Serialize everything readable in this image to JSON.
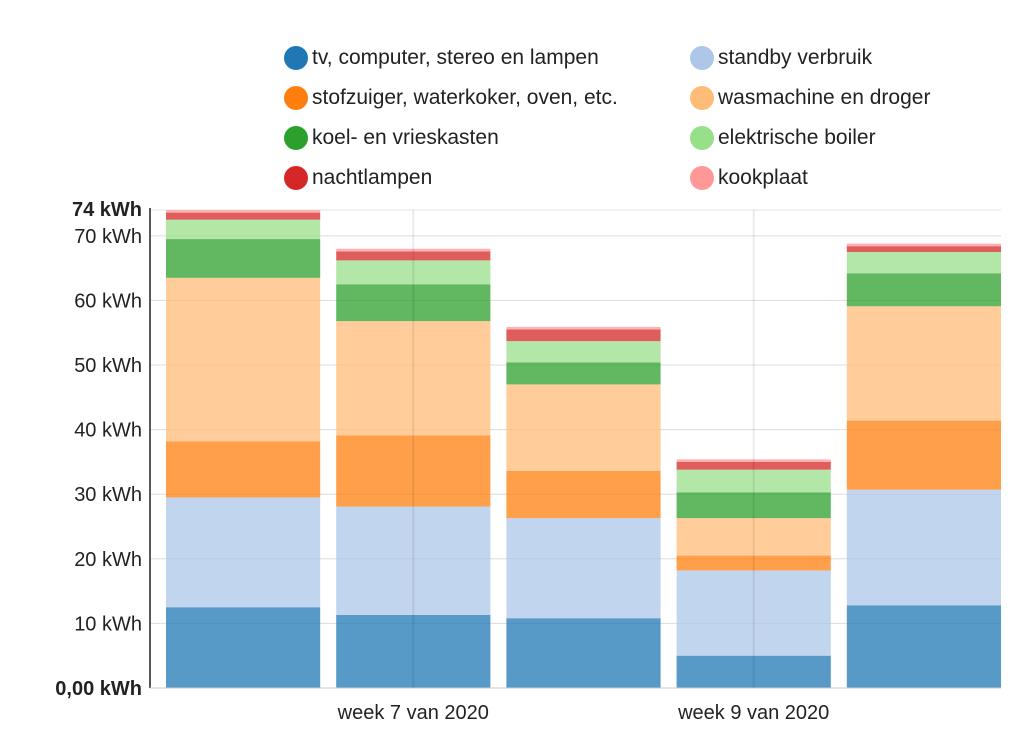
{
  "chart_data": {
    "type": "bar",
    "stacked": true,
    "categories": [
      "",
      "week 7 van 2020",
      "",
      "week 9 van 2020",
      ""
    ],
    "x_tick_labels": [
      "week 7 van 2020",
      "week 9 van 2020"
    ],
    "y_ticks": [
      10,
      20,
      30,
      40,
      50,
      60,
      70
    ],
    "y_tick_labels": [
      "10 kWh",
      "20 kWh",
      "30 kWh",
      "40 kWh",
      "50 kWh",
      "60 kWh",
      "70 kWh"
    ],
    "y_min_label": "0,00 kWh",
    "y_max_label": "74 kWh",
    "ylim": [
      0,
      74
    ],
    "grid": true,
    "legend_position": "top",
    "series": [
      {
        "name": "tv, computer, stereo en lampen",
        "color": "#1f77b4",
        "values": [
          12.5,
          11.3,
          10.8,
          5.0,
          12.8
        ]
      },
      {
        "name": "standby verbruik",
        "color": "#aec7e8",
        "values": [
          17.0,
          16.8,
          15.5,
          13.2,
          17.9
        ]
      },
      {
        "name": "stofzuiger, waterkoker, oven, etc.",
        "color": "#ff7f0e",
        "values": [
          8.7,
          11.0,
          7.3,
          2.3,
          10.7
        ]
      },
      {
        "name": "wasmachine en droger",
        "color": "#ffbb78",
        "values": [
          25.3,
          17.7,
          13.4,
          5.8,
          17.7
        ]
      },
      {
        "name": "koel- en vrieskasten",
        "color": "#2ca02c",
        "values": [
          6.0,
          5.7,
          3.4,
          4.0,
          5.1
        ]
      },
      {
        "name": "elektrische boiler",
        "color": "#98df8a",
        "values": [
          3.0,
          3.7,
          3.3,
          3.5,
          3.3
        ]
      },
      {
        "name": "nachtlampen",
        "color": "#d62728",
        "values": [
          1.1,
          1.4,
          1.8,
          1.2,
          0.9
        ]
      },
      {
        "name": "kookplaat",
        "color": "#ff9896",
        "values": [
          0.4,
          0.4,
          0.4,
          0.4,
          0.4
        ]
      }
    ]
  }
}
